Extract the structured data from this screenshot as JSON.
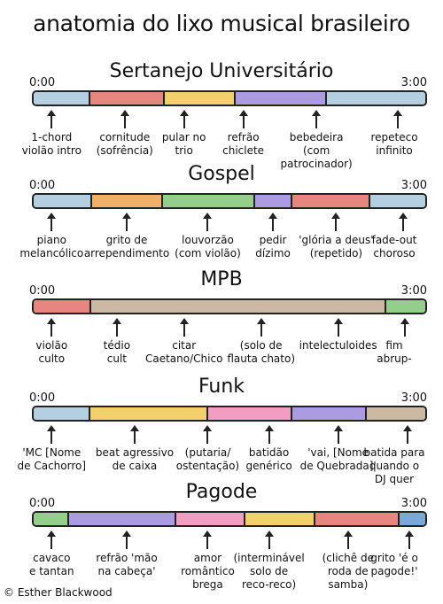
{
  "title": "anatomia do lixo musical brasileiro",
  "footer": "© Esther Blackwood",
  "sections": [
    {
      "genre": "Sertanejo Universitário",
      "start": "0:00",
      "end": "3:00",
      "segments": [
        {
          "color": "#b3cfe0",
          "fraction": 0.145
        },
        {
          "color": "#e6867f",
          "fraction": 0.19
        },
        {
          "color": "#f2d06b",
          "fraction": 0.18
        },
        {
          "color": "#ab9be0",
          "fraction": 0.235
        },
        {
          "color": "#b3cfe0",
          "fraction": 0.25
        }
      ],
      "labels": [
        {
          "text": "1-chord\nviolão intro",
          "pos": 0.05
        },
        {
          "text": "cornitude\n(sofrência)",
          "pos": 0.235
        },
        {
          "text": "pular no\ntrio",
          "pos": 0.385
        },
        {
          "text": "refrão\nchiclete",
          "pos": 0.535
        },
        {
          "text": "bebedeira\n(com patrocinador)",
          "pos": 0.72
        },
        {
          "text": "repeteco\ninfinito",
          "pos": 0.925
        }
      ]
    },
    {
      "genre": "Gospel",
      "start": "0:00",
      "end": "3:00",
      "segments": [
        {
          "color": "#b3cfe0",
          "fraction": 0.15
        },
        {
          "color": "#f0b06a",
          "fraction": 0.18
        },
        {
          "color": "#93cf8b",
          "fraction": 0.235
        },
        {
          "color": "#ab9be0",
          "fraction": 0.095
        },
        {
          "color": "#e6867f",
          "fraction": 0.2
        },
        {
          "color": "#b3cfe0",
          "fraction": 0.14
        }
      ],
      "labels": [
        {
          "text": "piano\nmelancólico",
          "pos": 0.05
        },
        {
          "text": "grito de\narrependimento",
          "pos": 0.24
        },
        {
          "text": "louvorzão\n(com violão)",
          "pos": 0.445
        },
        {
          "text": "pedir\ndízimo",
          "pos": 0.61
        },
        {
          "text": "'glória a deus'\n(repetido)",
          "pos": 0.77
        },
        {
          "text": "fade-out\nchoroso",
          "pos": 0.94
        }
      ]
    },
    {
      "genre": "MPB",
      "start": "0:00",
      "end": "3:00",
      "segments": [
        {
          "color": "#e6867f",
          "fraction": 0.148
        },
        {
          "color": "#cbb9a4",
          "fraction": 0.752
        },
        {
          "color": "#93cf8b",
          "fraction": 0.1
        }
      ],
      "labels": [
        {
          "text": "violão\nculto",
          "pos": 0.05
        },
        {
          "text": "tédio\ncult",
          "pos": 0.215
        },
        {
          "text": "citar\nCaetano/Chico",
          "pos": 0.385
        },
        {
          "text": "(solo de\nflauta chato)",
          "pos": 0.58
        },
        {
          "text": "intelectuloides",
          "pos": 0.775
        },
        {
          "text": "fim\nabrup-",
          "pos": 0.945
        }
      ]
    },
    {
      "genre": "Funk",
      "start": "0:00",
      "end": "3:00",
      "segments": [
        {
          "color": "#b3cfe0",
          "fraction": 0.145
        },
        {
          "color": "#f2d06b",
          "fraction": 0.3
        },
        {
          "color": "#f29ec2",
          "fraction": 0.215
        },
        {
          "color": "#ab9be0",
          "fraction": 0.19
        },
        {
          "color": "#cbb9a4",
          "fraction": 0.15
        }
      ],
      "labels": [
        {
          "text": "'MC [Nome\nde Cachorro]",
          "pos": 0.05
        },
        {
          "text": "beat agressivo\nde caixa",
          "pos": 0.26
        },
        {
          "text": "(putaria/\nostentação)",
          "pos": 0.445
        },
        {
          "text": "batidão\ngenérico",
          "pos": 0.6
        },
        {
          "text": "'vai, [Nome\nde Quebrada]'",
          "pos": 0.775
        },
        {
          "text": "batida para\nquando o\nDJ quer",
          "pos": 0.95
        }
      ]
    },
    {
      "genre": "Pagode",
      "start": "0:00",
      "end": "3:00",
      "segments": [
        {
          "color": "#93cf8b",
          "fraction": 0.09
        },
        {
          "color": "#ab9be0",
          "fraction": 0.275
        },
        {
          "color": "#f29ec2",
          "fraction": 0.175
        },
        {
          "color": "#f2d06b",
          "fraction": 0.18
        },
        {
          "color": "#e6867f",
          "fraction": 0.215
        },
        {
          "color": "#7aa8d8",
          "fraction": 0.065
        }
      ],
      "labels": [
        {
          "text": "cavaco\ne tantan",
          "pos": 0.05
        },
        {
          "text": "refrão 'mão\nna cabeça'",
          "pos": 0.24
        },
        {
          "text": "amor\nromântico\nbrega",
          "pos": 0.445
        },
        {
          "text": "(interminável\nsolo de\nreco-reco)",
          "pos": 0.6
        },
        {
          "text": "(clichê de\nroda de\nsamba)",
          "pos": 0.8
        },
        {
          "text": "grito 'é o\npagode!'",
          "pos": 0.955
        }
      ]
    }
  ]
}
